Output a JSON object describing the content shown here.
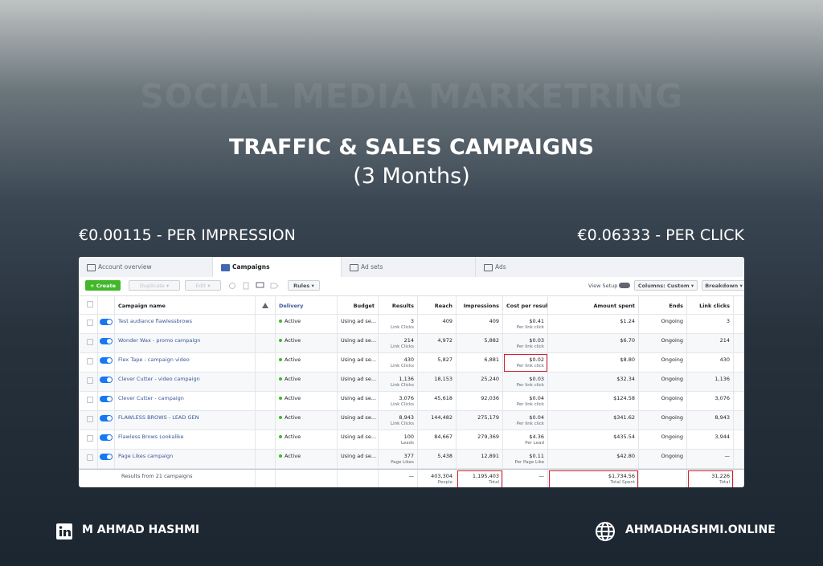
{
  "header": {
    "watermark": "SOCIAL MEDIA MARKETRING",
    "title": "TRAFFIC & SALES CAMPAIGNS",
    "subtitle": "(3 Months)"
  },
  "stats": {
    "left": "€0.00115 - PER IMPRESSION",
    "right": "€0.06333 - PER CLICK"
  },
  "tabs": [
    "Account overview",
    "Campaigns",
    "Ad sets",
    "Ads"
  ],
  "toolbar": {
    "create": "Create",
    "duplicate": "Duplicate",
    "edit": "Edit",
    "rules": "Rules",
    "view_setup": "View Setup",
    "columns": "Columns: Custom",
    "breakdown": "Breakdown"
  },
  "table": {
    "columns": [
      "Campaign name",
      "Delivery",
      "Budget",
      "Results",
      "Reach",
      "Impressions",
      "Cost per result",
      "Amount spent",
      "Ends",
      "Link clicks"
    ],
    "rows": [
      {
        "name": "Test audiance flawlessbrows",
        "delivery": "Active",
        "budget": "Using ad se...",
        "results": "3",
        "results_unit": "Link Clicks",
        "reach": "409",
        "impressions": "409",
        "cost": "$0.41",
        "cost_unit": "Per link click",
        "spent": "$1.24",
        "ends": "Ongoing",
        "link_clicks": "3"
      },
      {
        "name": "Wonder Wax - promo campaign",
        "delivery": "Active",
        "budget": "Using ad se...",
        "results": "214",
        "results_unit": "Link Clicks",
        "reach": "4,972",
        "impressions": "5,882",
        "cost": "$0.03",
        "cost_unit": "Per link click",
        "spent": "$6.70",
        "ends": "Ongoing",
        "link_clicks": "214"
      },
      {
        "name": "Flex Tape - campaign video",
        "delivery": "Active",
        "budget": "Using ad se...",
        "results": "430",
        "results_unit": "Link Clicks",
        "reach": "5,827",
        "impressions": "6,881",
        "cost": "$0.02",
        "cost_unit": "Per link click",
        "spent": "$8.80",
        "ends": "Ongoing",
        "link_clicks": "430",
        "highlight": [
          "cost"
        ]
      },
      {
        "name": "Clever Cutter - video campaign",
        "delivery": "Active",
        "budget": "Using ad se...",
        "results": "1,136",
        "results_unit": "Link Clicks",
        "reach": "18,153",
        "impressions": "25,240",
        "cost": "$0.03",
        "cost_unit": "Per link click",
        "spent": "$32.34",
        "ends": "Ongoing",
        "link_clicks": "1,136"
      },
      {
        "name": "Clever Cutter - campaign",
        "delivery": "Active",
        "budget": "Using ad se...",
        "results": "3,076",
        "results_unit": "Link Clicks",
        "reach": "45,618",
        "impressions": "92,036",
        "cost": "$0.04",
        "cost_unit": "Per link click",
        "spent": "$124.58",
        "ends": "Ongoing",
        "link_clicks": "3,076"
      },
      {
        "name": "FLAWLESS BROWS - LEAD GEN",
        "delivery": "Active",
        "budget": "Using ad se...",
        "results": "8,943",
        "results_unit": "Link Clicks",
        "reach": "144,482",
        "impressions": "275,179",
        "cost": "$0.04",
        "cost_unit": "Per link click",
        "spent": "$341.62",
        "ends": "Ongoing",
        "link_clicks": "8,943"
      },
      {
        "name": "Flawless Brows Lookalike",
        "delivery": "Active",
        "budget": "Using ad se...",
        "results": "100",
        "results_unit": "Leads",
        "reach": "84,667",
        "impressions": "279,369",
        "cost": "$4.36",
        "cost_unit": "Per Lead",
        "spent": "$435.54",
        "ends": "Ongoing",
        "link_clicks": "3,944"
      },
      {
        "name": "Page Likes campaign",
        "delivery": "Active",
        "budget": "Using ad se...",
        "results": "377",
        "results_unit": "Page Likes",
        "reach": "5,438",
        "impressions": "12,891",
        "cost": "$0.11",
        "cost_unit": "Per Page Like",
        "spent": "$42.80",
        "ends": "Ongoing",
        "link_clicks": "—"
      }
    ],
    "totals": {
      "name": "Results from 21 campaigns",
      "results": "—",
      "reach": "403,304",
      "reach_unit": "People",
      "impressions": "1,195,403",
      "impressions_unit": "Total",
      "cost": "—",
      "spent": "$1,734.56",
      "spent_unit": "Total Spent",
      "link_clicks": "31,226",
      "link_clicks_unit": "Total",
      "highlight": [
        "impressions",
        "spent",
        "link_clicks"
      ]
    }
  },
  "footer": {
    "name": "M AHMAD HASHMI",
    "website": "AHMADHASHMI.ONLINE"
  }
}
